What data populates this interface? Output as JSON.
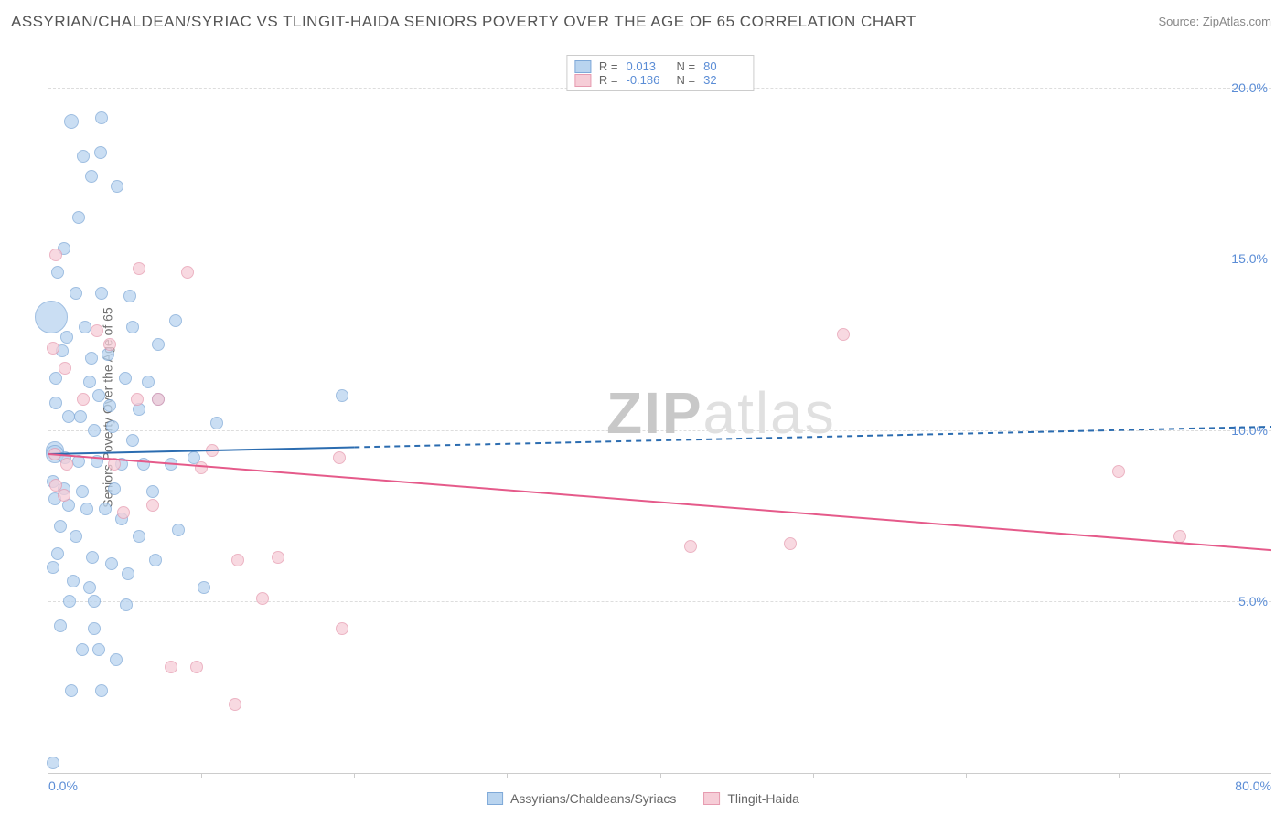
{
  "title": "ASSYRIAN/CHALDEAN/SYRIAC VS TLINGIT-HAIDA SENIORS POVERTY OVER THE AGE OF 65 CORRELATION CHART",
  "source": "Source: ZipAtlas.com",
  "watermark": {
    "left": "ZIP",
    "right": "atlas"
  },
  "ylabel": "Seniors Poverty Over the Age of 65",
  "axes": {
    "xlim": [
      0,
      80
    ],
    "ylim": [
      0,
      21
    ],
    "yticks": [
      {
        "v": 5,
        "label": "5.0%"
      },
      {
        "v": 10,
        "label": "10.0%"
      },
      {
        "v": 15,
        "label": "15.0%"
      },
      {
        "v": 20,
        "label": "20.0%"
      }
    ],
    "xticks": [
      {
        "v": 0,
        "label": "0.0%"
      },
      {
        "v": 80,
        "label": "80.0%"
      }
    ],
    "x_major_ticks": [
      10,
      20,
      30,
      40,
      50,
      60,
      70
    ],
    "grid_color": "#dddddd"
  },
  "series": [
    {
      "key": "A",
      "label": "Assyrians/Chaldeans/Syriacs",
      "fill": "#b9d4ef",
      "stroke": "#7fa9d8",
      "line_color": "#2b6cb0",
      "R": "0.013",
      "N": "80",
      "trend": {
        "x0": 0,
        "y0": 9.3,
        "x1": 80,
        "y1": 10.1,
        "solid_until_x": 20
      }
    },
    {
      "key": "B",
      "label": "Tlingit-Haida",
      "fill": "#f6cdd7",
      "stroke": "#e69bb0",
      "line_color": "#e55a8a",
      "R": "-0.186",
      "N": "32",
      "trend": {
        "x0": 0,
        "y0": 9.3,
        "x1": 80,
        "y1": 6.5,
        "solid_until_x": 80
      }
    }
  ],
  "points": {
    "A": [
      [
        0.3,
        0.3,
        7
      ],
      [
        1.5,
        19.0,
        8
      ],
      [
        3.5,
        19.1,
        7
      ],
      [
        2.3,
        18.0,
        7
      ],
      [
        3.4,
        18.1,
        7
      ],
      [
        4.5,
        17.1,
        7
      ],
      [
        1.8,
        14.0,
        7
      ],
      [
        3.5,
        14.0,
        7
      ],
      [
        5.3,
        13.9,
        7
      ],
      [
        0.2,
        13.3,
        18
      ],
      [
        8.3,
        13.2,
        7
      ],
      [
        0.9,
        12.3,
        7
      ],
      [
        2.8,
        12.1,
        7
      ],
      [
        3.9,
        12.2,
        7
      ],
      [
        5.0,
        11.5,
        7
      ],
      [
        2.7,
        11.4,
        7
      ],
      [
        6.5,
        11.4,
        7
      ],
      [
        7.2,
        10.9,
        7
      ],
      [
        0.5,
        10.8,
        7
      ],
      [
        1.3,
        10.4,
        7
      ],
      [
        2.1,
        10.4,
        7
      ],
      [
        3.0,
        10.0,
        7
      ],
      [
        4.2,
        10.1,
        7
      ],
      [
        5.5,
        9.7,
        7
      ],
      [
        0.4,
        9.4,
        10
      ],
      [
        0.4,
        9.3,
        10
      ],
      [
        1.1,
        9.2,
        7
      ],
      [
        2.0,
        9.1,
        7
      ],
      [
        3.2,
        9.1,
        7
      ],
      [
        4.8,
        9.0,
        7
      ],
      [
        6.2,
        9.0,
        7
      ],
      [
        8.0,
        9.0,
        7
      ],
      [
        9.5,
        9.2,
        7
      ],
      [
        19.2,
        11.0,
        7
      ],
      [
        0.3,
        8.5,
        7
      ],
      [
        1.0,
        8.3,
        7
      ],
      [
        2.2,
        8.2,
        7
      ],
      [
        0.4,
        8.0,
        7
      ],
      [
        1.3,
        7.8,
        7
      ],
      [
        2.5,
        7.7,
        7
      ],
      [
        3.7,
        7.7,
        7
      ],
      [
        4.8,
        7.4,
        7
      ],
      [
        5.9,
        6.9,
        7
      ],
      [
        1.8,
        6.9,
        7
      ],
      [
        0.6,
        6.4,
        7
      ],
      [
        2.9,
        6.3,
        7
      ],
      [
        4.1,
        6.1,
        7
      ],
      [
        5.2,
        5.8,
        7
      ],
      [
        1.6,
        5.6,
        7
      ],
      [
        2.7,
        5.4,
        7
      ],
      [
        3.0,
        5.0,
        7
      ],
      [
        5.1,
        4.9,
        7
      ],
      [
        2.2,
        3.6,
        7
      ],
      [
        3.3,
        3.6,
        7
      ],
      [
        1.5,
        2.4,
        7
      ],
      [
        3.5,
        2.4,
        7
      ],
      [
        10.2,
        5.4,
        7
      ],
      [
        8.5,
        7.1,
        7
      ],
      [
        11.0,
        10.2,
        7
      ],
      [
        7.0,
        6.2,
        7
      ],
      [
        2.8,
        17.4,
        7
      ],
      [
        3.3,
        11.0,
        7
      ],
      [
        5.5,
        13.0,
        7
      ],
      [
        0.5,
        11.5,
        7
      ],
      [
        1.2,
        12.7,
        7
      ],
      [
        4.0,
        10.7,
        7
      ],
      [
        7.2,
        12.5,
        7
      ],
      [
        0.8,
        7.2,
        7
      ],
      [
        1.4,
        5.0,
        7
      ],
      [
        3.0,
        4.2,
        7
      ],
      [
        4.4,
        3.3,
        7
      ],
      [
        2.0,
        16.2,
        7
      ],
      [
        1.0,
        15.3,
        7
      ],
      [
        0.6,
        14.6,
        7
      ],
      [
        6.8,
        8.2,
        7
      ],
      [
        0.3,
        6.0,
        7
      ],
      [
        4.3,
        8.3,
        7
      ],
      [
        5.9,
        10.6,
        7
      ],
      [
        2.4,
        13.0,
        7
      ],
      [
        0.8,
        4.3,
        7
      ]
    ],
    "B": [
      [
        0.5,
        15.1,
        7
      ],
      [
        3.2,
        12.9,
        7
      ],
      [
        4.0,
        12.5,
        7
      ],
      [
        5.9,
        14.7,
        7
      ],
      [
        9.1,
        14.6,
        7
      ],
      [
        0.3,
        12.4,
        7
      ],
      [
        1.1,
        11.8,
        7
      ],
      [
        2.3,
        10.9,
        7
      ],
      [
        5.8,
        10.9,
        7
      ],
      [
        7.2,
        10.9,
        7
      ],
      [
        0.4,
        9.3,
        7
      ],
      [
        1.2,
        9.0,
        7
      ],
      [
        4.3,
        9.0,
        7
      ],
      [
        10.0,
        8.9,
        7
      ],
      [
        0.5,
        8.4,
        7
      ],
      [
        1.0,
        8.1,
        7
      ],
      [
        4.9,
        7.6,
        7
      ],
      [
        6.8,
        7.8,
        7
      ],
      [
        10.7,
        9.4,
        7
      ],
      [
        19.0,
        9.2,
        7
      ],
      [
        12.4,
        6.2,
        7
      ],
      [
        15.0,
        6.3,
        7
      ],
      [
        8.0,
        3.1,
        7
      ],
      [
        9.7,
        3.1,
        7
      ],
      [
        12.2,
        2.0,
        7
      ],
      [
        14.0,
        5.1,
        7
      ],
      [
        19.2,
        4.2,
        7
      ],
      [
        42.0,
        6.6,
        7
      ],
      [
        48.5,
        6.7,
        7
      ],
      [
        52.0,
        12.8,
        7
      ],
      [
        70.0,
        8.8,
        7
      ],
      [
        74.0,
        6.9,
        7
      ]
    ]
  },
  "legend_swatch_fill_A": "#b9d4ef",
  "legend_swatch_stroke_A": "#7fa9d8",
  "legend_swatch_fill_B": "#f6cdd7",
  "legend_swatch_stroke_B": "#e69bb0"
}
